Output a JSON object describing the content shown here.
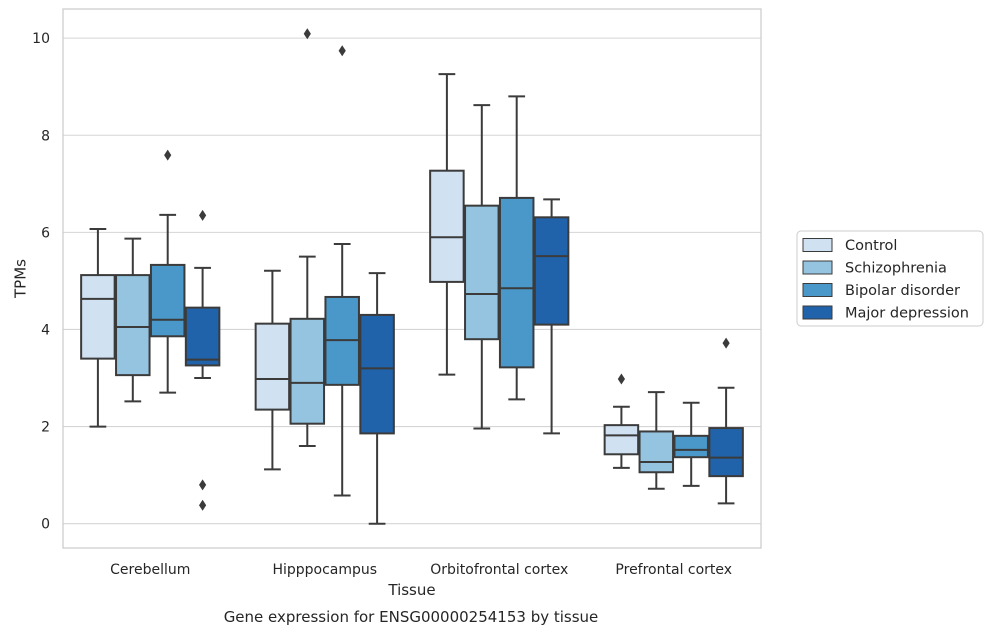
{
  "caption": "Gene expression for ENSG00000254153 by tissue",
  "chart_data": {
    "type": "box",
    "xlabel": "Tissue",
    "ylabel": "TPMs",
    "ylim": [
      -0.5,
      10.6
    ],
    "yticks": [
      0,
      2,
      4,
      6,
      8,
      10
    ],
    "grid": "horizontal",
    "legend_position": "right",
    "categories": [
      "Cerebellum",
      "Hipppocampus",
      "Orbitofrontal cortex",
      "Prefrontal cortex"
    ],
    "series": [
      {
        "name": "Control",
        "color": "#d0e1f2",
        "boxes": [
          {
            "whislo": 2.0,
            "q1": 3.4,
            "med": 4.63,
            "q3": 5.12,
            "whishi": 6.07,
            "fliers": []
          },
          {
            "whislo": 1.12,
            "q1": 2.35,
            "med": 2.98,
            "q3": 4.12,
            "whishi": 5.21,
            "fliers": []
          },
          {
            "whislo": 3.07,
            "q1": 4.98,
            "med": 5.9,
            "q3": 7.27,
            "whishi": 9.26,
            "fliers": []
          },
          {
            "whislo": 1.15,
            "q1": 1.43,
            "med": 1.82,
            "q3": 2.03,
            "whishi": 2.41,
            "fliers": [
              2.98
            ]
          }
        ]
      },
      {
        "name": "Schizophrenia",
        "color": "#94c4df",
        "boxes": [
          {
            "whislo": 2.52,
            "q1": 3.06,
            "med": 4.05,
            "q3": 5.12,
            "whishi": 5.87,
            "fliers": []
          },
          {
            "whislo": 1.6,
            "q1": 2.06,
            "med": 2.9,
            "q3": 4.22,
            "whishi": 5.5,
            "fliers": [
              10.09
            ]
          },
          {
            "whislo": 1.96,
            "q1": 3.8,
            "med": 4.73,
            "q3": 6.55,
            "whishi": 8.62,
            "fliers": []
          },
          {
            "whislo": 0.72,
            "q1": 1.06,
            "med": 1.27,
            "q3": 1.9,
            "whishi": 2.71,
            "fliers": []
          }
        ]
      },
      {
        "name": "Bipolar disorder",
        "color": "#4a98c9",
        "boxes": [
          {
            "whislo": 2.7,
            "q1": 3.86,
            "med": 4.2,
            "q3": 5.33,
            "whishi": 6.36,
            "fliers": [
              7.59
            ]
          },
          {
            "whislo": 0.58,
            "q1": 2.86,
            "med": 3.78,
            "q3": 4.67,
            "whishi": 5.76,
            "fliers": [
              9.74
            ]
          },
          {
            "whislo": 2.56,
            "q1": 3.22,
            "med": 4.85,
            "q3": 6.71,
            "whishi": 8.8,
            "fliers": []
          },
          {
            "whislo": 0.78,
            "q1": 1.37,
            "med": 1.52,
            "q3": 1.81,
            "whishi": 2.49,
            "fliers": []
          }
        ]
      },
      {
        "name": "Major depression",
        "color": "#2163aa",
        "boxes": [
          {
            "whislo": 3.0,
            "q1": 3.26,
            "med": 3.38,
            "q3": 4.45,
            "whishi": 5.27,
            "fliers": [
              6.35,
              0.8,
              0.38
            ]
          },
          {
            "whislo": 0.0,
            "q1": 1.86,
            "med": 3.2,
            "q3": 4.3,
            "whishi": 5.16,
            "fliers": []
          },
          {
            "whislo": 1.86,
            "q1": 4.1,
            "med": 5.51,
            "q3": 6.31,
            "whishi": 6.68,
            "fliers": []
          },
          {
            "whislo": 0.42,
            "q1": 0.98,
            "med": 1.36,
            "q3": 1.97,
            "whishi": 2.8,
            "fliers": [
              3.72
            ]
          }
        ]
      }
    ]
  }
}
